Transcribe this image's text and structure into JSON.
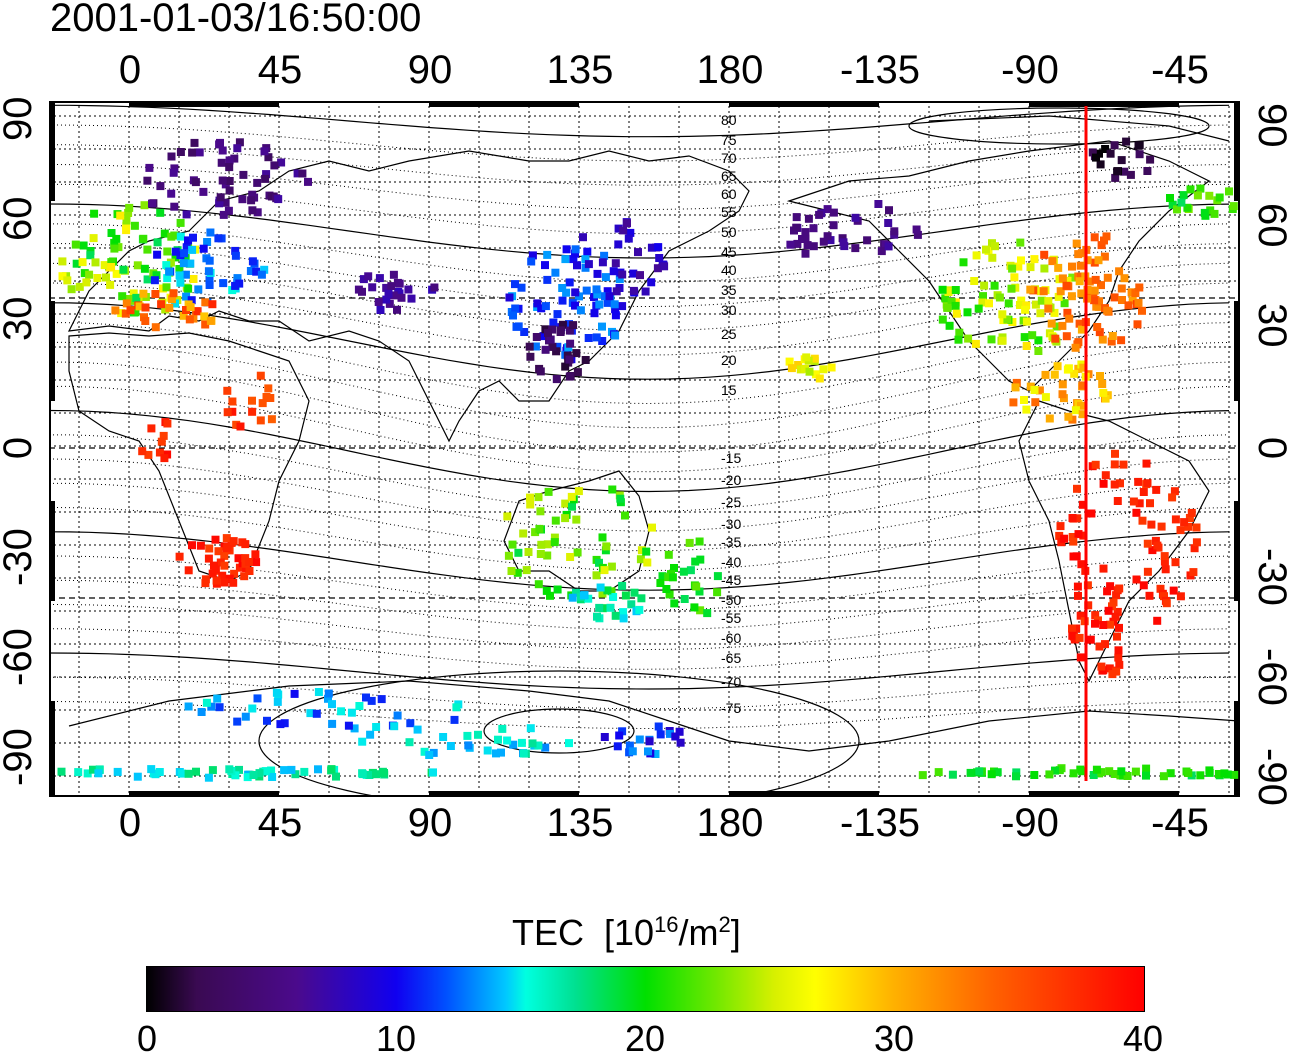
{
  "timestamp": "2001-01-03/16:50:00",
  "axes": {
    "top_ticks": [
      "0",
      "45",
      "90",
      "135",
      "180",
      "-135",
      "-90",
      "-45"
    ],
    "bottom_ticks": [
      "0",
      "45",
      "90",
      "135",
      "180",
      "-135",
      "-90",
      "-45"
    ],
    "left_ticks": [
      "90",
      "60",
      "30",
      "0",
      "-30",
      "-60",
      "-90"
    ],
    "right_ticks": [
      "90",
      "60",
      "30",
      "0",
      "-30",
      "-60",
      "-90"
    ]
  },
  "contour_labels": [
    "80",
    "75",
    "70",
    "65",
    "60",
    "55",
    "50",
    "45",
    "40",
    "35",
    "30",
    "25",
    "20",
    "15",
    "-15",
    "-20",
    "-25",
    "-30",
    "-35",
    "-40",
    "-45",
    "-50",
    "-55",
    "-60",
    "-65",
    "-70",
    "-75"
  ],
  "colorbar": {
    "title_main": "TEC",
    "title_unit_pre": "[10",
    "title_unit_exp1": "16",
    "title_unit_mid": "/m",
    "title_unit_exp2": "2",
    "title_unit_post": "]",
    "ticks": [
      "0",
      "10",
      "20",
      "30",
      "40"
    ],
    "range": [
      0,
      40
    ]
  },
  "colors": {
    "terminator_line": "#ff0000",
    "coastline": "#000000",
    "grid": "#000000"
  }
}
